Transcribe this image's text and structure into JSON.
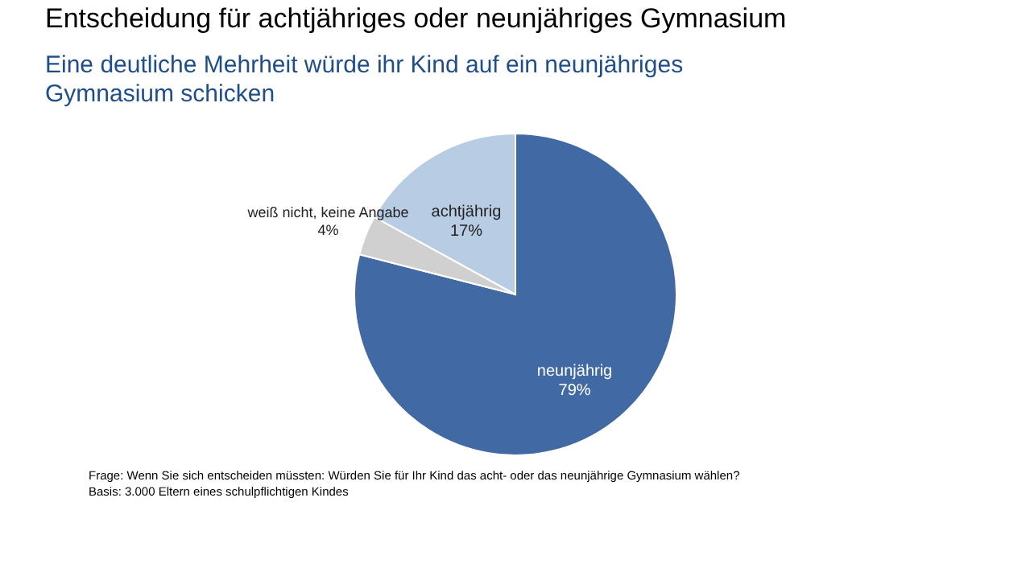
{
  "chart_data": {
    "type": "pie",
    "title": "Entscheidung für achtjähriges oder neunjähriges Gymnasium",
    "subtitle": "Eine deutliche Mehrheit würde ihr Kind auf ein neunjähriges Gymnasium schicken",
    "categories": [
      "neunjährig",
      "weiß nicht, keine Angabe",
      "achtjährig"
    ],
    "values": [
      79,
      4,
      17
    ],
    "value_labels": [
      "79%",
      "4%",
      "17%"
    ],
    "colors": [
      "#4169a4",
      "#d0d0d0",
      "#b8cce4"
    ],
    "annotations": [
      "Frage:   Wenn Sie sich entscheiden müssten: Würden Sie für Ihr Kind das acht- oder das neunjährige Gymnasium wählen?",
      "Basis:   3.000 Eltern eines schulpflichtigen Kindes"
    ]
  }
}
